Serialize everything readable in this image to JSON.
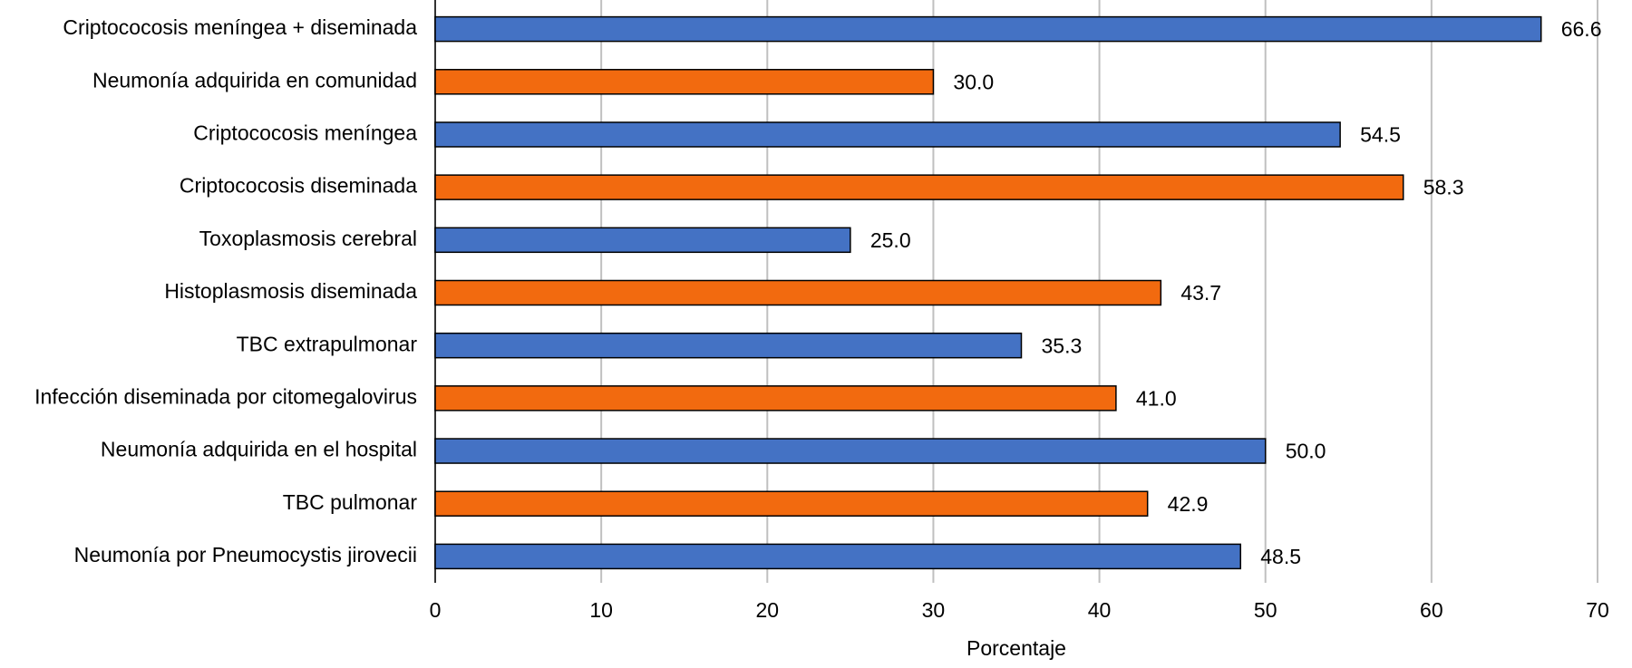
{
  "chart_data": {
    "type": "bar",
    "orientation": "horizontal",
    "x_label": "Porcentaje",
    "categories": [
      "Criptococosis meníngea + diseminada",
      "Neumonía adquirida en comunidad",
      "Criptococosis meníngea",
      "Criptococosis diseminada",
      "Toxoplasmosis cerebral",
      "Histoplasmosis diseminada",
      "TBC extrapulmonar",
      "Infección diseminada por citomegalovirus",
      "Neumonía adquirida en el hospital",
      "TBC pulmonar",
      "Neumonía por Pneumocystis jirovecii"
    ],
    "values": [
      66.6,
      30,
      54.5,
      58.3,
      25,
      43.7,
      35.3,
      41,
      50,
      42.9,
      48.5
    ],
    "value_labels": [
      "66.6",
      "30.0",
      "54.5",
      "58.3",
      "25.0",
      "43.7",
      "35.3",
      "41.0",
      "50.0",
      "42.9",
      "48.5"
    ],
    "colors": [
      "#4472c4",
      "#f26a0f",
      "#4472c4",
      "#f26a0f",
      "#4472c4",
      "#f26a0f",
      "#4472c4",
      "#f26a0f",
      "#4472c4",
      "#f26a0f",
      "#4472c4"
    ],
    "xlim": [
      0,
      70
    ],
    "xticks": [
      0,
      10,
      20,
      30,
      40,
      50,
      60,
      70
    ],
    "grid": true
  }
}
